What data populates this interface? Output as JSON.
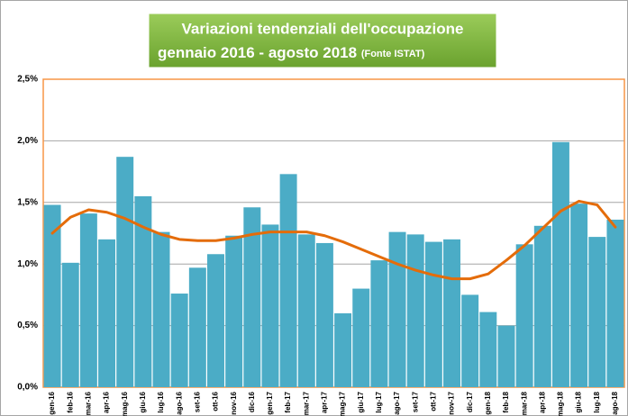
{
  "chart_data": {
    "type": "bar",
    "title": [
      "Variazioni  tendenziali dell'occupazione",
      "gennaio 2016 -  agosto 2018"
    ],
    "source": "(Fonte ISTAT)",
    "categories": [
      "gen-16",
      "feb-16",
      "mar-16",
      "apr-16",
      "mag-16",
      "giu-16",
      "lug-16",
      "ago-16",
      "set-16",
      "ott-16",
      "nov-16",
      "dic-16",
      "gen-17",
      "feb-17",
      "mar-17",
      "apr-17",
      "mag-17",
      "giu-17",
      "lug-17",
      "ago-17",
      "set-17",
      "ott-17",
      "nov-17",
      "dic-17",
      "gen-18",
      "feb-18",
      "mar-18",
      "apr-18",
      "mag-18",
      "giu-18",
      "lug-18",
      "ago-18"
    ],
    "values": [
      1.48,
      1.01,
      1.41,
      1.2,
      1.87,
      1.55,
      1.26,
      0.76,
      0.97,
      1.08,
      1.23,
      1.46,
      1.32,
      1.73,
      1.24,
      1.17,
      0.6,
      0.8,
      1.03,
      1.26,
      1.24,
      1.18,
      1.2,
      0.75,
      0.61,
      0.5,
      1.16,
      1.31,
      1.99,
      1.49,
      1.22,
      1.36
    ],
    "color": "#4bacc6",
    "trend": {
      "color": "#e46c0a",
      "values": [
        1.25,
        1.38,
        1.44,
        1.42,
        1.37,
        1.3,
        1.24,
        1.2,
        1.19,
        1.19,
        1.21,
        1.24,
        1.26,
        1.26,
        1.26,
        1.23,
        1.18,
        1.12,
        1.06,
        1.0,
        0.95,
        0.91,
        0.88,
        0.88,
        0.92,
        1.03,
        1.15,
        1.29,
        1.43,
        1.51,
        1.48,
        1.3
      ]
    },
    "ylim": [
      0,
      2.5
    ],
    "yticks": [
      {
        "value": 0,
        "label": "0,0%"
      },
      {
        "value": 0.5,
        "label": "0,5%"
      },
      {
        "value": 1,
        "label": "1,0%"
      },
      {
        "value": 1.5,
        "label": "1,5%"
      },
      {
        "value": 2,
        "label": "2,0%"
      },
      {
        "value": 2.5,
        "label": "2,5%"
      }
    ],
    "grid": true
  }
}
